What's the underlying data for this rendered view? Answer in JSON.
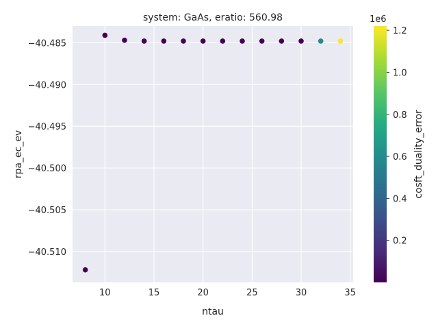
{
  "chart_data": {
    "type": "scatter",
    "title": "system: GaAs, eratio: 560.98",
    "xlabel": "ntau",
    "ylabel": "rpa_ec_ev",
    "xlim": [
      6.7,
      35.3
    ],
    "ylim": [
      -40.5137,
      -40.483
    ],
    "x_ticks": [
      "10",
      "15",
      "20",
      "25",
      "30",
      "35"
    ],
    "y_ticks": [
      "−40.485",
      "−40.490",
      "−40.495",
      "−40.500",
      "−40.505",
      "−40.510"
    ],
    "grid": true,
    "background": "#eaeaf2",
    "colormap": "viridis",
    "points": [
      {
        "x": 8,
        "y": -40.5122,
        "c": 0
      },
      {
        "x": 10,
        "y": -40.4841,
        "c": 0
      },
      {
        "x": 12,
        "y": -40.4847,
        "c": 0
      },
      {
        "x": 14,
        "y": -40.4848,
        "c": 0
      },
      {
        "x": 16,
        "y": -40.4848,
        "c": 0
      },
      {
        "x": 18,
        "y": -40.4848,
        "c": 0
      },
      {
        "x": 20,
        "y": -40.4848,
        "c": 0
      },
      {
        "x": 22,
        "y": -40.4848,
        "c": 0
      },
      {
        "x": 24,
        "y": -40.4848,
        "c": 0
      },
      {
        "x": 26,
        "y": -40.4848,
        "c": 0
      },
      {
        "x": 28,
        "y": -40.4848,
        "c": 0
      },
      {
        "x": 30,
        "y": -40.4848,
        "c": 0
      },
      {
        "x": 32,
        "y": -40.4848,
        "c": 580000
      },
      {
        "x": 34,
        "y": -40.4848,
        "c": 1220000
      }
    ],
    "colorbar": {
      "label": "cosft_duality_error",
      "range": [
        0,
        1220000
      ],
      "ticks": [
        "0.2",
        "0.4",
        "0.6",
        "0.8",
        "1.0",
        "1.2"
      ],
      "tick_values": [
        200000,
        400000,
        600000,
        800000,
        1000000,
        1200000
      ],
      "scale_label": "1e6"
    }
  }
}
